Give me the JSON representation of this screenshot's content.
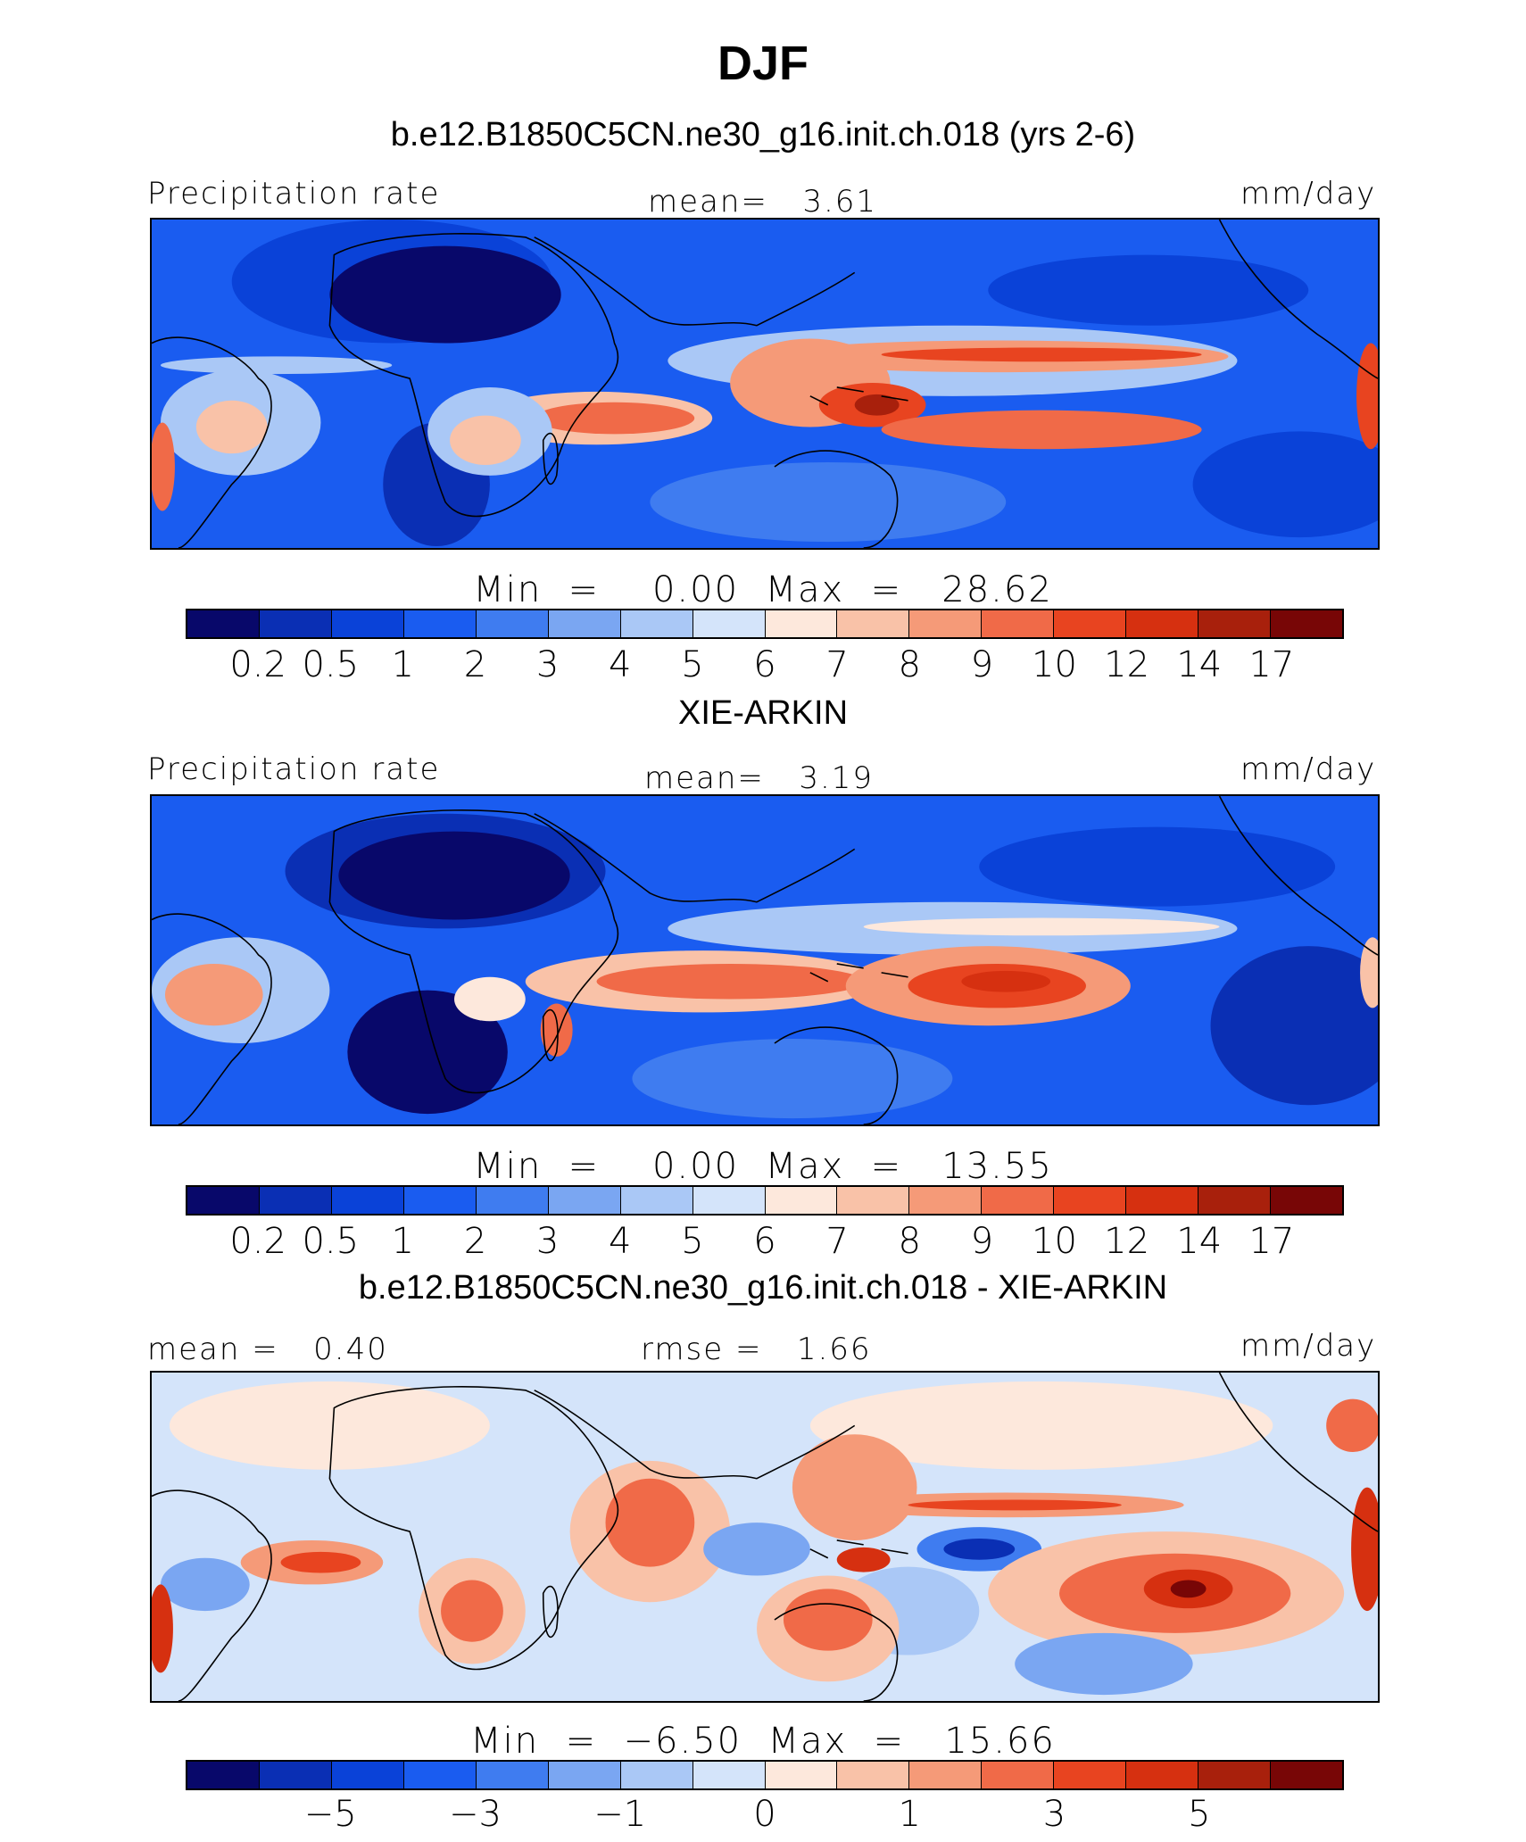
{
  "title": "DJF",
  "colors": {
    "scale": [
      "#08086a",
      "#0a2fb4",
      "#0a42d8",
      "#1a5cf0",
      "#3f7cf0",
      "#7aa6f2",
      "#aac8f6",
      "#d4e4fa",
      "#fde8dc",
      "#f9c2a8",
      "#f59a78",
      "#f06a48",
      "#e84420",
      "#d63010",
      "#a8200c",
      "#780606"
    ]
  },
  "panels": [
    {
      "title": "b.e12.B1850C5CN.ne30_g16.init.ch.018 (yrs 2-6)",
      "left_label": "Precipitation rate",
      "center_label": "mean=   3.61",
      "right_label": "mm/day",
      "min_max": "Min  =    0.00  Max  =   28.62",
      "tick_labels": [
        "0.2",
        "0.5",
        "1",
        "2",
        "3",
        "4",
        "5",
        "6",
        "7",
        "8",
        "9",
        "10",
        "12",
        "14",
        "17"
      ]
    },
    {
      "title": "XIE-ARKIN",
      "left_label": "Precipitation rate",
      "center_label": "mean=   3.19",
      "right_label": "mm/day",
      "min_max": "Min  =    0.00  Max  =   13.55",
      "tick_labels": [
        "0.2",
        "0.5",
        "1",
        "2",
        "3",
        "4",
        "5",
        "6",
        "7",
        "8",
        "9",
        "10",
        "12",
        "14",
        "17"
      ]
    },
    {
      "title": "b.e12.B1850C5CN.ne30_g16.init.ch.018 - XIE-ARKIN",
      "left_label": "mean =   0.40",
      "center_label": "rmse =   1.66",
      "right_label": "mm/day",
      "min_max": "Min  =  −6.50  Max  =   15.66",
      "tick_labels": [
        "−5",
        "−3",
        "−1",
        "0",
        "1",
        "3",
        "5"
      ]
    }
  ],
  "chart_data": [
    {
      "type": "heatmap",
      "title": "b.e12.B1850C5CN.ne30_g16.init.ch.018 (yrs 2-6)",
      "variable": "Precipitation rate",
      "units": "mm/day",
      "mean": 3.61,
      "min": 0.0,
      "max": 28.62,
      "contour_levels": [
        0.2,
        0.5,
        1,
        2,
        3,
        4,
        5,
        6,
        7,
        8,
        9,
        10,
        12,
        14,
        17
      ]
    },
    {
      "type": "heatmap",
      "title": "XIE-ARKIN",
      "variable": "Precipitation rate",
      "units": "mm/day",
      "mean": 3.19,
      "min": 0.0,
      "max": 13.55,
      "contour_levels": [
        0.2,
        0.5,
        1,
        2,
        3,
        4,
        5,
        6,
        7,
        8,
        9,
        10,
        12,
        14,
        17
      ]
    },
    {
      "type": "heatmap",
      "title": "b.e12.B1850C5CN.ne30_g16.init.ch.018 - XIE-ARKIN",
      "units": "mm/day",
      "mean": 0.4,
      "rmse": 1.66,
      "min": -6.5,
      "max": 15.66,
      "contour_levels_labeled": [
        -5,
        -3,
        -1,
        0,
        1,
        3,
        5
      ]
    }
  ]
}
